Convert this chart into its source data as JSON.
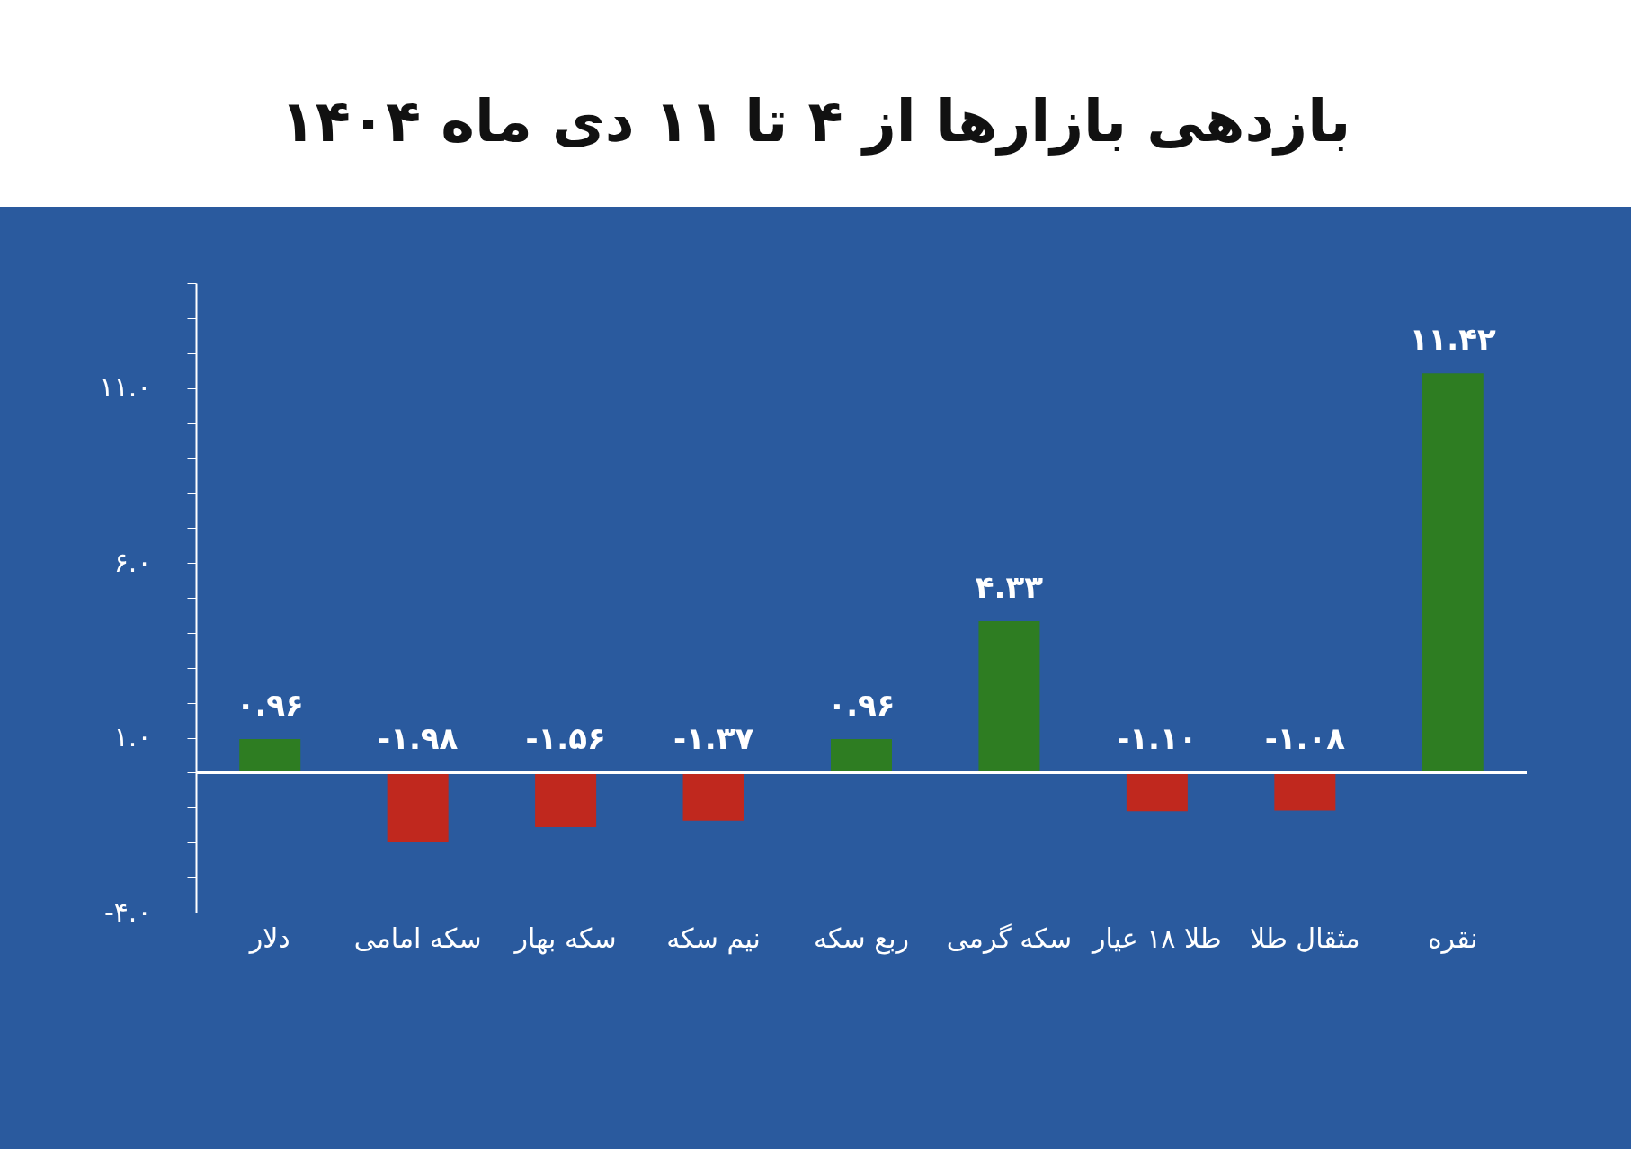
{
  "chart_data": {
    "type": "bar",
    "title": "بازدهی بازارها از ۴ تا ۱۱ دی ماه ۱۴۰۴",
    "categories": [
      "دلار",
      "سکه امامی",
      "سکه بهار",
      "نیم سکه",
      "ربع سکه",
      "سکه گرمی",
      "طلا ۱۸ عیار",
      "مثقال طلا",
      "نقره"
    ],
    "values": [
      0.96,
      -1.98,
      -1.56,
      -1.37,
      0.96,
      4.33,
      -1.1,
      -1.08,
      11.42
    ],
    "colors": [
      "#2e7d22",
      "#c0281e",
      "#c0281e",
      "#c0281e",
      "#2e7d22",
      "#2e7d22",
      "#c0281e",
      "#c0281e",
      "#2e7d22"
    ],
    "value_labels": [
      "۰.۹۶",
      "-۱.۹۸",
      "-۱.۵۶",
      "-۱.۳۷",
      "۰.۹۶",
      "۴.۳۳",
      "-۱.۱۰",
      "-۱.۰۸",
      "۱۱.۴۲"
    ],
    "ylim": [
      -4,
      14
    ],
    "yticks": [
      {
        "value": -4,
        "label": "-۴.۰"
      },
      {
        "value": -3,
        "label": null
      },
      {
        "value": -2,
        "label": null
      },
      {
        "value": -1,
        "label": null
      },
      {
        "value": 0,
        "label": null
      },
      {
        "value": 1,
        "label": "۱.۰"
      },
      {
        "value": 2,
        "label": null
      },
      {
        "value": 3,
        "label": null
      },
      {
        "value": 4,
        "label": null
      },
      {
        "value": 5,
        "label": null
      },
      {
        "value": 6,
        "label": "۶.۰"
      },
      {
        "value": 7,
        "label": null
      },
      {
        "value": 8,
        "label": null
      },
      {
        "value": 9,
        "label": null
      },
      {
        "value": 10,
        "label": null
      },
      {
        "value": 11,
        "label": "۱۱.۰"
      },
      {
        "value": 12,
        "label": null
      },
      {
        "value": 13,
        "label": null
      },
      {
        "value": 14,
        "label": null
      }
    ],
    "ref_lines": [
      {
        "axis": "y",
        "value": 0,
        "color": "#ffffff"
      }
    ],
    "grid": false
  }
}
